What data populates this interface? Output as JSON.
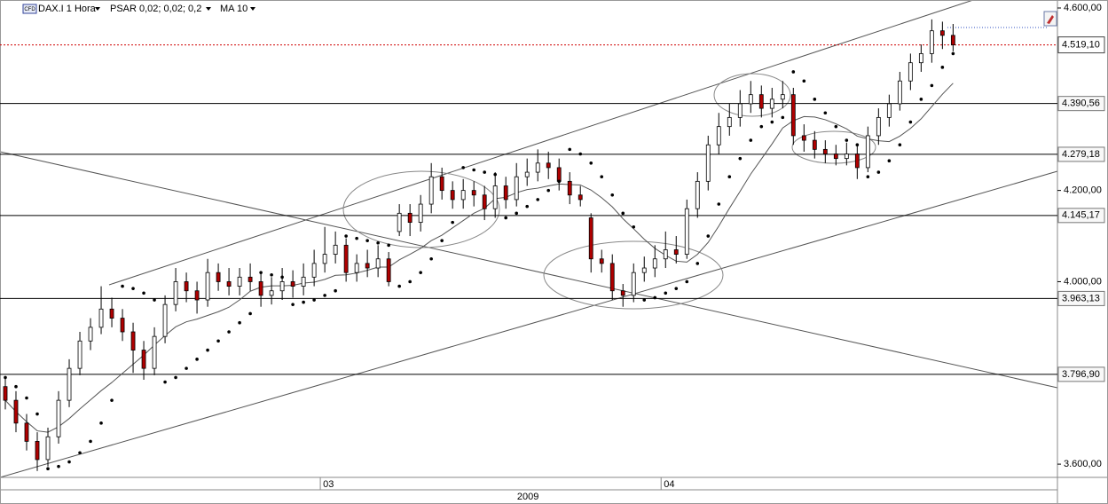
{
  "chart_data": {
    "type": "candlestick",
    "icon_label": "CFD",
    "title": "DAX.I 1 Hora",
    "indicators": [
      "PSAR 0,02; 0,02; 0,2",
      "MA 10"
    ],
    "ylim": [
      3571,
      4617.5
    ],
    "yticks": [
      {
        "value": 3600,
        "label": "3.600,00"
      },
      {
        "value": 4000,
        "label": "4.000,00"
      },
      {
        "value": 4200,
        "label": "4.200,00"
      },
      {
        "value": 4600,
        "label": "4.600,00"
      }
    ],
    "xlim": [
      -0.5,
      98.8
    ],
    "xticks": [
      {
        "value": 29.58,
        "label": "03"
      },
      {
        "value": 61.58,
        "label": "04"
      }
    ],
    "xticks2": [
      {
        "value": 49.08,
        "label": "2009"
      }
    ],
    "levels": [
      {
        "value": 4390.56,
        "label": "4.390,56"
      },
      {
        "value": 4279.18,
        "label": "4.279,18"
      },
      {
        "value": 4145.17,
        "label": "4.145,17"
      },
      {
        "value": 3963.13,
        "label": "3.963,13"
      },
      {
        "value": 3796.9,
        "label": "3.796,90"
      }
    ],
    "last": {
      "value": 4519.1,
      "label": "4.519,10"
    },
    "up_color": "#ffffff",
    "down_color": "#b00000",
    "level_label_color": "#b00000",
    "last_color": "#d00000",
    "psar_color": "#000000",
    "ma_color": "#555555",
    "candles": {
      "open": [
        3770,
        3740,
        3690,
        3650,
        3610,
        3660,
        3740,
        3810,
        3870,
        3900,
        3940,
        3920,
        3890,
        3850,
        3810,
        3880,
        3950,
        4000,
        3980,
        3960,
        4020,
        4000,
        3990,
        4010,
        4000,
        3970,
        3980,
        4000,
        3990,
        4010,
        4040,
        4060,
        4080,
        4020,
        4040,
        4030,
        4050,
        4110,
        4150,
        4130,
        4170,
        4230,
        4200,
        4180,
        4200,
        4190,
        4160,
        4210,
        4180,
        4230,
        4240,
        4260,
        4250,
        4220,
        4190,
        4140,
        4050,
        4040,
        3980,
        3970,
        4020,
        4030,
        4050,
        4070,
        4060,
        4160,
        4220,
        4300,
        4340,
        4360,
        4390,
        4410,
        4380,
        4400,
        4410,
        4320,
        4310,
        4290,
        4280,
        4270,
        4280,
        4250,
        4320,
        4360,
        4390,
        4440,
        4480,
        4500,
        4550,
        4540
      ],
      "high": [
        3790,
        3760,
        3710,
        3670,
        3680,
        3760,
        3830,
        3890,
        3920,
        3990,
        3965,
        3940,
        3910,
        3870,
        3900,
        3970,
        4030,
        4020,
        4000,
        4050,
        4040,
        4030,
        4030,
        4040,
        4020,
        4010,
        4030,
        4025,
        4040,
        4070,
        4120,
        4110,
        4095,
        4060,
        4070,
        4080,
        4065,
        4170,
        4170,
        4190,
        4260,
        4250,
        4220,
        4225,
        4220,
        4210,
        4240,
        4230,
        4260,
        4270,
        4290,
        4285,
        4270,
        4240,
        4210,
        4150,
        4070,
        4060,
        3995,
        4040,
        4055,
        4080,
        4110,
        4100,
        4180,
        4240,
        4320,
        4370,
        4390,
        4420,
        4440,
        4430,
        4425,
        4440,
        4425,
        4345,
        4330,
        4310,
        4300,
        4305,
        4300,
        4340,
        4380,
        4410,
        4460,
        4500,
        4520,
        4575,
        4570,
        4565
      ],
      "low": [
        3720,
        3670,
        3630,
        3585,
        3595,
        3645,
        3725,
        3795,
        3850,
        3885,
        3900,
        3870,
        3800,
        3785,
        3795,
        3865,
        3935,
        3955,
        3930,
        3945,
        3980,
        3970,
        3970,
        3980,
        3945,
        3950,
        3960,
        3965,
        3970,
        3990,
        4020,
        4040,
        4000,
        4000,
        4010,
        4010,
        3990,
        4100,
        4100,
        4110,
        4150,
        4180,
        4160,
        4160,
        4165,
        4135,
        4140,
        4160,
        4165,
        4210,
        4220,
        4225,
        4200,
        4170,
        4165,
        4020,
        4020,
        3960,
        3945,
        3955,
        4000,
        4010,
        4030,
        4040,
        4050,
        4140,
        4200,
        4280,
        4320,
        4340,
        4370,
        4360,
        4360,
        4380,
        4300,
        4285,
        4270,
        4260,
        4255,
        4255,
        4225,
        4240,
        4300,
        4340,
        4375,
        4420,
        4460,
        4480,
        4510,
        4505
      ],
      "close": [
        3740,
        3690,
        3650,
        3610,
        3660,
        3740,
        3810,
        3870,
        3900,
        3940,
        3920,
        3890,
        3850,
        3810,
        3880,
        3950,
        4000,
        3980,
        3960,
        4020,
        4000,
        3990,
        4010,
        4000,
        3970,
        3980,
        4000,
        3990,
        4010,
        4040,
        4060,
        4080,
        4020,
        4040,
        4030,
        4050,
        4000,
        4150,
        4130,
        4170,
        4230,
        4200,
        4180,
        4200,
        4190,
        4160,
        4210,
        4180,
        4230,
        4240,
        4260,
        4250,
        4220,
        4190,
        4180,
        4050,
        4040,
        3980,
        3970,
        4020,
        4030,
        4050,
        4070,
        4060,
        4160,
        4220,
        4300,
        4340,
        4360,
        4390,
        4410,
        4380,
        4400,
        4410,
        4320,
        4310,
        4290,
        4280,
        4270,
        4280,
        4250,
        4320,
        4360,
        4390,
        4440,
        4480,
        4500,
        4550,
        4540,
        4519.1
      ]
    },
    "psar": {
      "values": [
        3790,
        3770,
        3745,
        3710,
        3590,
        3595,
        3605,
        3625,
        3650,
        3690,
        3740,
        3990,
        3985,
        3975,
        3960,
        3780,
        3790,
        3810,
        3830,
        3850,
        3870,
        3890,
        3910,
        3930,
        4020,
        4015,
        4010,
        3950,
        3955,
        3960,
        3970,
        3980,
        4100,
        4095,
        4090,
        4085,
        4080,
        3990,
        4000,
        4020,
        4050,
        4090,
        4130,
        4250,
        4245,
        4240,
        4235,
        4140,
        4150,
        4165,
        4180,
        4200,
        4220,
        4290,
        4280,
        4260,
        4230,
        4190,
        4150,
        4120,
        3960,
        3965,
        3975,
        3985,
        4000,
        4040,
        4100,
        4170,
        4230,
        4270,
        4310,
        4340,
        4350,
        4360,
        4460,
        4440,
        4400,
        4370,
        4340,
        4310,
        4300,
        4230,
        4240,
        4265,
        4300,
        4350,
        4400,
        4430,
        4470,
        4500
      ]
    },
    "ma": {
      "values": [
        3740,
        3715,
        3693,
        3673,
        3670,
        3682,
        3700,
        3721,
        3741,
        3761,
        3779,
        3799,
        3819,
        3839,
        3861,
        3882,
        3901,
        3912,
        3918,
        3926,
        3934,
        3944,
        3960,
        3979,
        3988,
        3991,
        3991,
        3992,
        3997,
        3999,
        4005,
        4014,
        4015,
        4019,
        4025,
        4032,
        4032,
        4048,
        4060,
        4073,
        4090,
        4102,
        4118,
        4134,
        4150,
        4161,
        4182,
        4185,
        4195,
        4202,
        4205,
        4210,
        4214,
        4213,
        4212,
        4201,
        4184,
        4164,
        4138,
        4116,
        4093,
        4073,
        4058,
        4045,
        4043,
        4060,
        4086,
        4122,
        4161,
        4198,
        4236,
        4269,
        4302,
        4337,
        4353,
        4362,
        4361,
        4355,
        4346,
        4335,
        4319,
        4313,
        4309,
        4307,
        4319,
        4336,
        4357,
        4384,
        4411,
        4435
      ]
    }
  }
}
